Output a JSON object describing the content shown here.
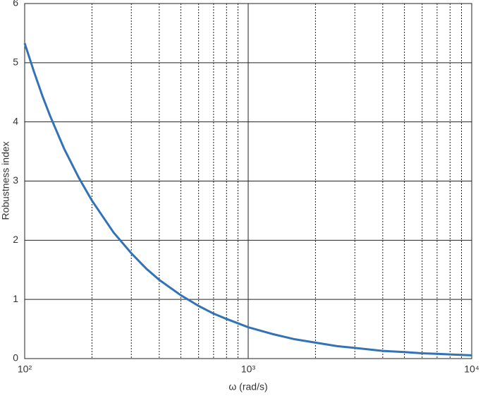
{
  "chart_data": {
    "type": "line",
    "xlabel": "ω (rad/s)",
    "ylabel": "Robustness index",
    "xscale": "log",
    "x": [
      100,
      110,
      120,
      130,
      150,
      175,
      200,
      250,
      300,
      350,
      400,
      500,
      600,
      700,
      800,
      1000,
      1300,
      1600,
      2000,
      2500,
      3000,
      4000,
      5000,
      6000,
      7000,
      8000,
      10000
    ],
    "series": [
      {
        "name": "Robustness index",
        "color": "#3373b5",
        "values": [
          5.33,
          4.85,
          4.44,
          4.1,
          3.55,
          3.05,
          2.67,
          2.13,
          1.78,
          1.52,
          1.33,
          1.07,
          0.89,
          0.76,
          0.67,
          0.53,
          0.41,
          0.33,
          0.27,
          0.21,
          0.18,
          0.13,
          0.11,
          0.09,
          0.08,
          0.07,
          0.055
        ]
      }
    ],
    "xlim": [
      100,
      10000
    ],
    "xticks": [
      {
        "value": 100,
        "label": "10²"
      },
      {
        "value": 1000,
        "label": "10³"
      },
      {
        "value": 10000,
        "label": "10⁴"
      }
    ],
    "xminorticks": [
      200,
      300,
      400,
      500,
      600,
      700,
      800,
      900,
      2000,
      3000,
      4000,
      5000,
      6000,
      7000,
      8000,
      9000
    ],
    "ylim": [
      0,
      6
    ],
    "yticks": [
      0,
      1,
      2,
      3,
      4,
      5,
      6
    ],
    "grid": true
  }
}
